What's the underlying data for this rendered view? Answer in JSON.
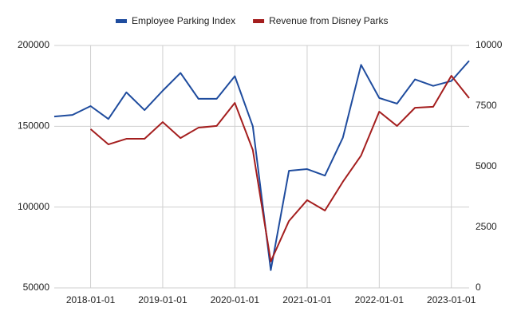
{
  "chart_data": {
    "type": "line",
    "x": [
      "2017-07-01",
      "2017-10-01",
      "2018-01-01",
      "2018-04-01",
      "2018-07-01",
      "2018-10-01",
      "2019-01-01",
      "2019-04-01",
      "2019-07-01",
      "2019-10-01",
      "2020-01-01",
      "2020-04-01",
      "2020-07-01",
      "2020-10-01",
      "2021-01-01",
      "2021-04-01",
      "2021-07-01",
      "2021-10-01",
      "2022-01-01",
      "2022-04-01",
      "2022-07-01",
      "2022-10-01",
      "2023-01-01",
      "2023-04-01"
    ],
    "xlim": [
      "2017-07-01",
      "2023-04-01"
    ],
    "xticks": [
      "2018-01-01",
      "2019-01-01",
      "2020-01-01",
      "2021-01-01",
      "2022-01-01",
      "2023-01-01"
    ],
    "series": [
      {
        "name": "Employee Parking Index",
        "color": "#1f4c9e",
        "values": [
          156000,
          157000,
          162500,
          154500,
          171000,
          160000,
          172000,
          183000,
          167000,
          167000,
          181000,
          150000,
          61000,
          122500,
          123500,
          119500,
          143000,
          188000,
          167500,
          164000,
          179000,
          175000,
          178000,
          190500
        ]
      },
      {
        "name": "Revenue from Disney Parks",
        "color": "#a41e1e",
        "axis": "y2",
        "values": [
          null,
          null,
          6550,
          5920,
          6150,
          6150,
          6840,
          6180,
          6610,
          6680,
          7630,
          5690,
          1090,
          2760,
          3620,
          3190,
          4380,
          5460,
          7270,
          6680,
          7430,
          7470,
          8750,
          7830
        ]
      }
    ],
    "ylim": [
      50000,
      200000
    ],
    "yticks": [
      50000,
      100000,
      150000,
      200000
    ],
    "y2lim": [
      0,
      10000
    ],
    "y2ticks": [
      0,
      2500,
      5000,
      7500,
      10000
    ],
    "grid": true,
    "legend": "top"
  }
}
